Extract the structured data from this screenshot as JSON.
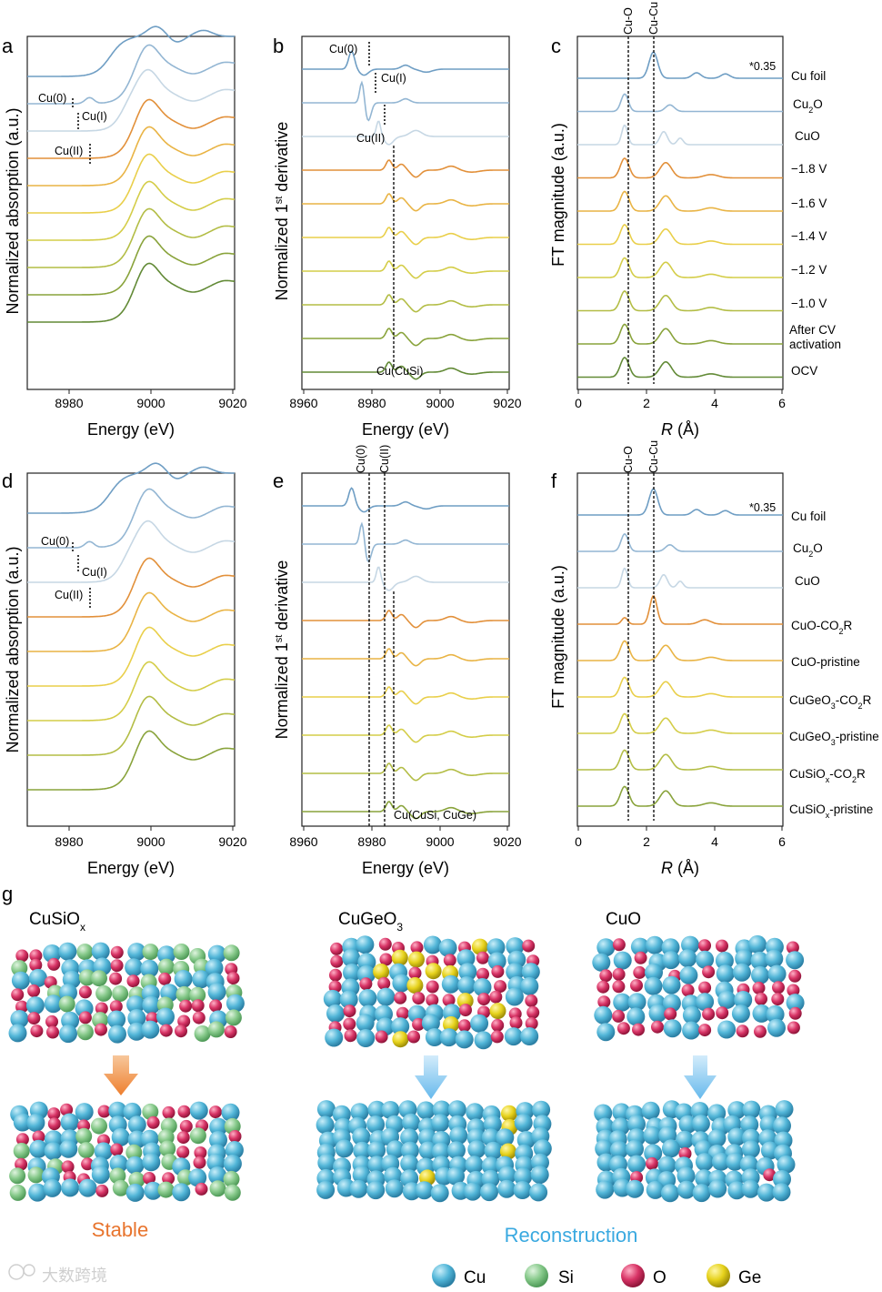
{
  "colors": [
    "#6f9ec4",
    "#93b6d3",
    "#c6d7e4",
    "#e2903a",
    "#e9b445",
    "#e9cf4a",
    "#d4cd48",
    "#b3bd45",
    "#89a33b",
    "#628a36",
    "#3f6b2e"
  ],
  "panels": {
    "a": {
      "label": "a",
      "xlabel": "Energy (eV)",
      "ylabel": "Normalized absorption (a.u.)",
      "xticks": [
        "8980",
        "9000",
        "9020"
      ],
      "ann": {
        "cu0": "Cu(0)",
        "cu1": "Cu(I)",
        "cu2": "Cu(II)"
      }
    },
    "b": {
      "label": "b",
      "xlabel": "Energy (eV)",
      "ylabel": "Normalized 1st derivative",
      "ylabel_main": "Normalized 1",
      "ylabel_sup": "st",
      "ylabel_rest": " derivative",
      "xticks": [
        "8960",
        "8980",
        "9000",
        "9020"
      ],
      "ann": {
        "cu0": "Cu(0)",
        "cu1": "Cu(I)",
        "cu2": "Cu(II)",
        "cusi": "Cu(CuSi)"
      }
    },
    "c": {
      "label": "c",
      "xlabel_it": "R",
      "xlabel_rest": " (Å)",
      "ylabel": "FT magnitude (a.u.)",
      "xticks": [
        "0",
        "2",
        "4",
        "6"
      ],
      "top": {
        "cuo": "Cu-O",
        "cucu": "Cu-Cu"
      },
      "scale_note": "*0.35",
      "series": [
        "Cu foil",
        "Cu2O",
        "CuO",
        "−1.8 V",
        "−1.6 V",
        "−1.4 V",
        "−1.2 V",
        "−1.0 V",
        "After CV activation",
        "OCV"
      ]
    },
    "d": {
      "label": "d",
      "xlabel": "Energy (eV)",
      "ylabel": "Normalized absorption (a.u.)",
      "xticks": [
        "8980",
        "9000",
        "9020"
      ],
      "ann": {
        "cu0": "Cu(0)",
        "cu1": "Cu(I)",
        "cu2": "Cu(II)"
      }
    },
    "e": {
      "label": "e",
      "xlabel": "Energy (eV)",
      "ylabel_main": "Normalized 1",
      "ylabel_sup": "st",
      "ylabel_rest": " derivative",
      "xticks": [
        "8960",
        "8980",
        "9000",
        "9020"
      ],
      "top": {
        "cu0": "Cu(0)",
        "cu2": "Cu(II)"
      },
      "ann": {
        "cusige": "Cu(CuSi, CuGe)"
      }
    },
    "f": {
      "label": "f",
      "xlabel_it": "R",
      "xlabel_rest": " (Å)",
      "ylabel": "FT magnitude (a.u.)",
      "xticks": [
        "0",
        "2",
        "4",
        "6"
      ],
      "top": {
        "cuo": "Cu-O",
        "cucu": "Cu-Cu"
      },
      "scale_note": "*0.35",
      "series": [
        "Cu foil",
        "Cu2O",
        "CuO",
        "CuO-CO2R",
        "CuO-pristine",
        "CuGeO3-CO2R",
        "CuGeO3-pristine",
        "CuSiOx-CO2R",
        "CuSiOx-pristine"
      ]
    }
  },
  "models": {
    "label": "g",
    "cusiox": {
      "title": "CuSiOx",
      "outcome": "Stable"
    },
    "cugeo3": {
      "title": "CuGeO3"
    },
    "cuo": {
      "title": "CuO"
    },
    "reconstruction": "Reconstruction"
  },
  "legend": [
    {
      "name": "Cu",
      "color": "#5bbcdc"
    },
    {
      "name": "Si",
      "color": "#86c98a"
    },
    {
      "name": "O",
      "color": "#d83466"
    },
    {
      "name": "Ge",
      "color": "#e6d21c"
    }
  ],
  "watermark": "大数跨境",
  "chart_data": [
    {
      "type": "line",
      "panel": "a",
      "title": "",
      "xlabel": "Energy (eV)",
      "ylabel": "Normalized absorption (a.u.)",
      "xlim": [
        8970,
        9020
      ],
      "series": [
        "Cu foil",
        "Cu2O",
        "CuO",
        "−1.8 V",
        "−1.6 V",
        "−1.4 V",
        "−1.2 V",
        "−1.0 V",
        "After CV activation",
        "OCV"
      ],
      "annotations": [
        {
          "text": "Cu(0)",
          "x": 8979
        },
        {
          "text": "Cu(I)",
          "x": 8981
        },
        {
          "text": "Cu(II)",
          "x": 8985
        }
      ]
    },
    {
      "type": "line",
      "panel": "b",
      "xlabel": "Energy (eV)",
      "ylabel": "Normalized 1st derivative",
      "xlim": [
        8960,
        9020
      ],
      "series": [
        "Cu foil",
        "Cu2O",
        "CuO",
        "−1.8 V",
        "−1.6 V",
        "−1.4 V",
        "−1.2 V",
        "−1.0 V",
        "After CV activation",
        "OCV"
      ],
      "annotations": [
        {
          "text": "Cu(0)",
          "x": 8979
        },
        {
          "text": "Cu(I)",
          "x": 8981
        },
        {
          "text": "Cu(II)",
          "x": 8984
        },
        {
          "text": "Cu(CuSi)",
          "x": 8986
        }
      ]
    },
    {
      "type": "line",
      "panel": "c",
      "xlabel": "R (Å)",
      "ylabel": "FT magnitude (a.u.)",
      "xlim": [
        0,
        6
      ],
      "series": [
        "Cu foil",
        "Cu2O",
        "CuO",
        "−1.8 V",
        "−1.6 V",
        "−1.4 V",
        "−1.2 V",
        "−1.0 V",
        "After CV activation",
        "OCV"
      ],
      "reference_lines": [
        {
          "text": "Cu-O",
          "x": 1.5
        },
        {
          "text": "Cu-Cu",
          "x": 2.25
        }
      ],
      "note": "*0.35"
    },
    {
      "type": "line",
      "panel": "d",
      "xlabel": "Energy (eV)",
      "ylabel": "Normalized absorption (a.u.)",
      "xlim": [
        8970,
        9020
      ],
      "series": [
        "Cu foil",
        "Cu2O",
        "CuO",
        "CuO-CO2R",
        "CuO-pristine",
        "CuGeO3-CO2R",
        "CuGeO3-pristine",
        "CuSiOx-CO2R",
        "CuSiOx-pristine"
      ]
    },
    {
      "type": "line",
      "panel": "e",
      "xlabel": "Energy (eV)",
      "ylabel": "Normalized 1st derivative",
      "xlim": [
        8960,
        9020
      ],
      "series": [
        "Cu foil",
        "Cu2O",
        "CuO",
        "CuO-CO2R",
        "CuO-pristine",
        "CuGeO3-CO2R",
        "CuGeO3-pristine",
        "CuSiOx-CO2R",
        "CuSiOx-pristine"
      ],
      "reference_lines": [
        {
          "text": "Cu(0)",
          "x": 8979
        },
        {
          "text": "Cu(II)",
          "x": 8984
        },
        {
          "text": "Cu(CuSi, CuGe)",
          "x": 8986
        }
      ]
    },
    {
      "type": "line",
      "panel": "f",
      "xlabel": "R (Å)",
      "ylabel": "FT magnitude (a.u.)",
      "xlim": [
        0,
        6
      ],
      "series": [
        "Cu foil",
        "Cu2O",
        "CuO",
        "CuO-CO2R",
        "CuO-pristine",
        "CuGeO3-CO2R",
        "CuGeO3-pristine",
        "CuSiOx-CO2R",
        "CuSiOx-pristine"
      ],
      "reference_lines": [
        {
          "text": "Cu-O",
          "x": 1.5
        },
        {
          "text": "Cu-Cu",
          "x": 2.2
        }
      ],
      "note": "*0.35"
    }
  ]
}
